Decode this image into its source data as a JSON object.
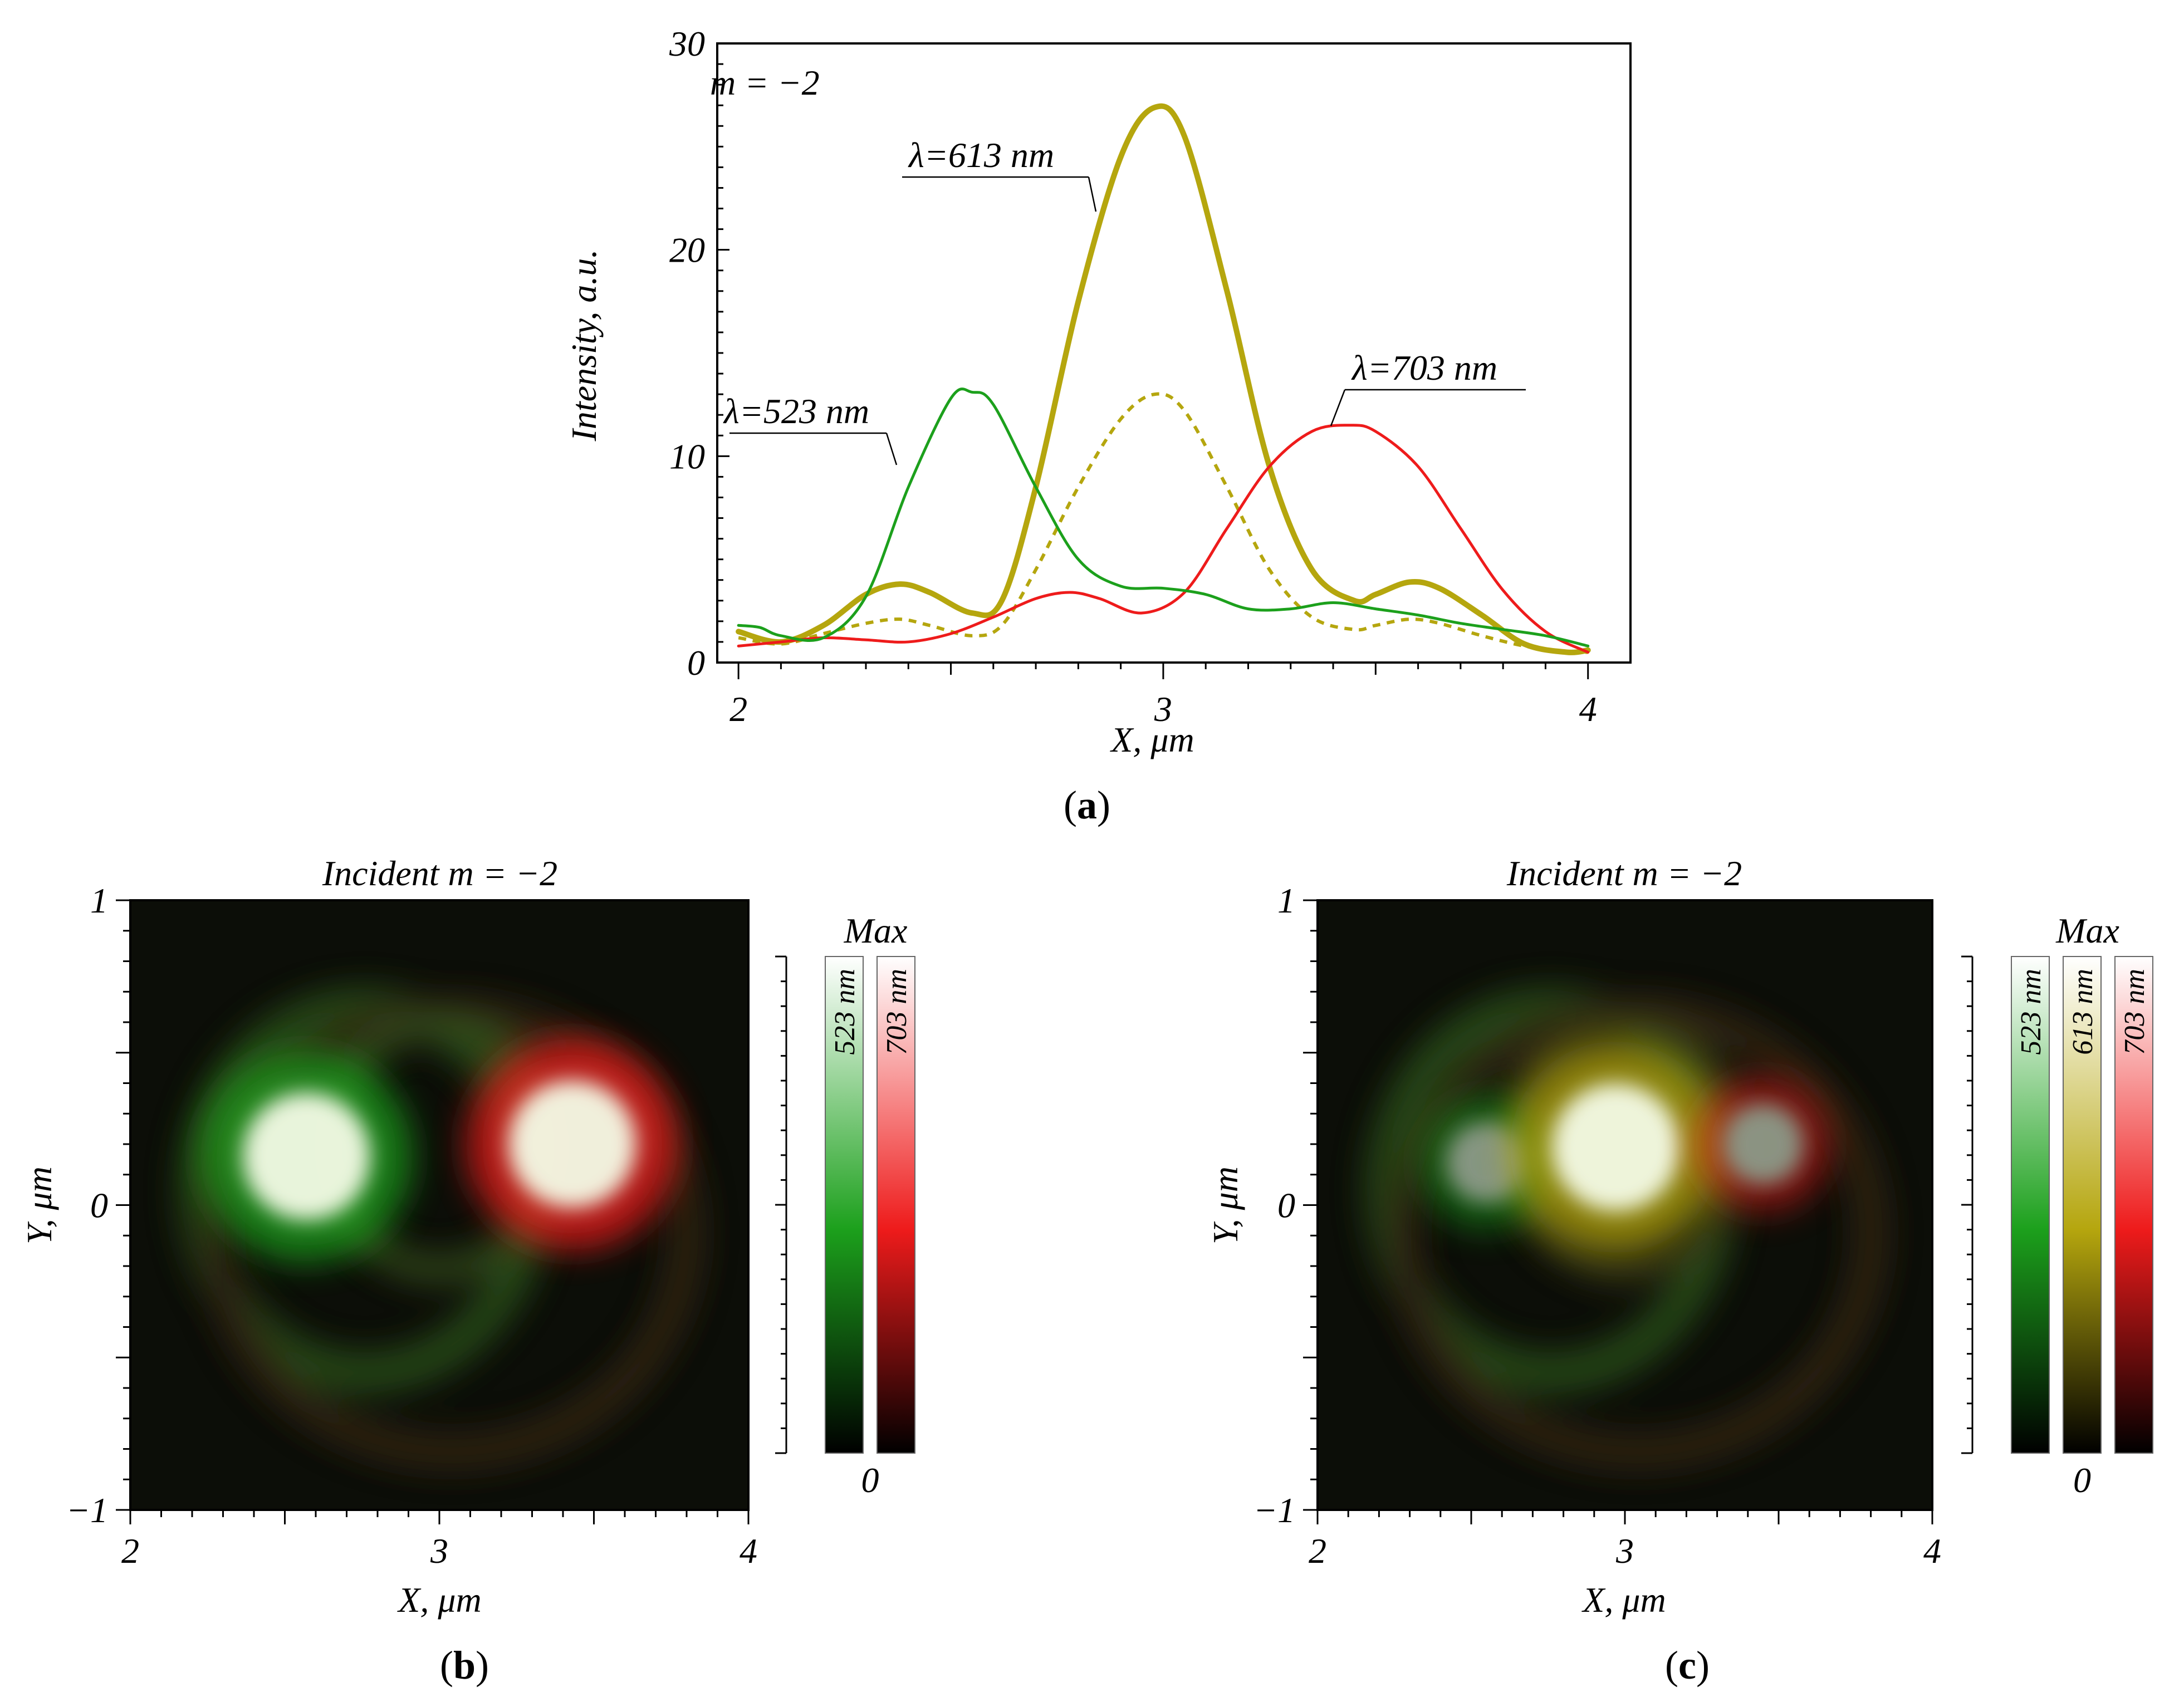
{
  "colors": {
    "green": "#1ca01c",
    "olive": "#b5a60e",
    "red": "#ee1b1b",
    "axis": "#000000"
  },
  "chart_data": [
    {
      "id": "a",
      "panel_label": "a",
      "type": "line",
      "annotation": "m = −2",
      "xlabel": "X, μm",
      "ylabel": "Intensity, a.u.",
      "xlim": [
        1.95,
        4.1
      ],
      "ylim": [
        0,
        30
      ],
      "xticks": [
        "2",
        "3",
        "4"
      ],
      "xtick_values": [
        2,
        3,
        4
      ],
      "yticks": [
        "0",
        "10",
        "20",
        "30"
      ],
      "ytick_values": [
        0,
        10,
        20,
        30
      ],
      "series": [
        {
          "name": "λ=523 nm",
          "color_key": "green",
          "style": "solid",
          "x": [
            2.0,
            2.05,
            2.1,
            2.2,
            2.3,
            2.4,
            2.5,
            2.55,
            2.6,
            2.7,
            2.8,
            2.9,
            3.0,
            3.1,
            3.2,
            3.3,
            3.4,
            3.5,
            3.6,
            3.7,
            3.8,
            3.9,
            4.0
          ],
          "y": [
            1.8,
            1.7,
            1.3,
            1.2,
            3.2,
            8.5,
            12.8,
            13.1,
            12.5,
            8.5,
            5.0,
            3.7,
            3.6,
            3.3,
            2.6,
            2.6,
            2.9,
            2.6,
            2.3,
            1.9,
            1.6,
            1.3,
            0.8
          ]
        },
        {
          "name": "λ=613 nm",
          "color_key": "olive",
          "style": "bold",
          "x": [
            2.0,
            2.1,
            2.2,
            2.3,
            2.38,
            2.45,
            2.55,
            2.62,
            2.7,
            2.8,
            2.9,
            2.98,
            3.05,
            3.15,
            3.25,
            3.35,
            3.45,
            3.5,
            3.58,
            3.65,
            3.75,
            3.85,
            3.95,
            4.0
          ],
          "y": [
            1.5,
            1.0,
            1.8,
            3.3,
            3.8,
            3.4,
            2.4,
            3.0,
            8.5,
            17.5,
            24.5,
            26.9,
            25.5,
            18.0,
            9.5,
            4.5,
            3.0,
            3.3,
            3.9,
            3.6,
            2.3,
            0.9,
            0.5,
            0.6
          ]
        },
        {
          "name": "613 nm (dashed)",
          "color_key": "olive",
          "style": "dashed",
          "x": [
            2.0,
            2.1,
            2.2,
            2.3,
            2.38,
            2.45,
            2.55,
            2.62,
            2.7,
            2.8,
            2.9,
            2.98,
            3.05,
            3.15,
            3.25,
            3.35,
            3.45,
            3.5,
            3.58,
            3.65,
            3.75,
            3.85,
            3.95,
            4.0
          ],
          "y": [
            1.2,
            0.9,
            1.4,
            1.9,
            2.1,
            1.8,
            1.3,
            1.8,
            4.5,
            8.5,
            11.8,
            13.0,
            12.2,
            8.5,
            4.5,
            2.2,
            1.6,
            1.8,
            2.1,
            1.9,
            1.3,
            0.8,
            0.5,
            0.5
          ]
        },
        {
          "name": "λ=703 nm",
          "color_key": "red",
          "style": "solid",
          "x": [
            2.0,
            2.1,
            2.2,
            2.3,
            2.4,
            2.5,
            2.6,
            2.7,
            2.78,
            2.85,
            2.95,
            3.05,
            3.15,
            3.25,
            3.35,
            3.44,
            3.5,
            3.6,
            3.7,
            3.8,
            3.9,
            4.0
          ],
          "y": [
            0.8,
            1.0,
            1.2,
            1.1,
            1.0,
            1.4,
            2.2,
            3.1,
            3.4,
            3.1,
            2.4,
            3.4,
            6.5,
            9.5,
            11.2,
            11.5,
            11.2,
            9.5,
            6.5,
            3.5,
            1.5,
            0.5
          ]
        }
      ],
      "labels": [
        {
          "text": "λ=523 nm",
          "color_key": "green",
          "at_x": 2.58,
          "at_y": 9.5
        },
        {
          "text": "λ=613 nm",
          "color_key": "olive",
          "at_x": 2.9,
          "at_y": 22.0
        },
        {
          "text": "λ=703 nm",
          "color_key": "red",
          "at_x": 3.38,
          "at_y": 11.4
        }
      ]
    },
    {
      "id": "b",
      "panel_label": "b",
      "type": "heatmap",
      "title": "Incident m = −2",
      "xlabel": "X, μm",
      "ylabel": "Y, μm",
      "xlim": [
        2,
        4
      ],
      "ylim": [
        -1,
        1
      ],
      "xticks": [
        "2",
        "3",
        "4"
      ],
      "xtick_values": [
        2,
        3,
        4
      ],
      "yticks": [
        "1",
        "0",
        "−1"
      ],
      "ytick_values": [
        1,
        0,
        -1
      ],
      "colorbar": {
        "top_label": "Max",
        "bottom_label": "0",
        "bars": [
          {
            "label": "523 nm",
            "color_key": "green"
          },
          {
            "label": "703 nm",
            "color_key": "red"
          }
        ]
      },
      "spots": [
        {
          "x": 2.57,
          "y": 0.16,
          "color_key": "green",
          "peak": 1.0
        },
        {
          "x": 3.43,
          "y": 0.2,
          "color_key": "red",
          "peak": 1.0
        }
      ]
    },
    {
      "id": "c",
      "panel_label": "c",
      "type": "heatmap",
      "title": "Incident m = −2",
      "xlabel": "X, μm",
      "ylabel": "Y, μm",
      "xlim": [
        2,
        4
      ],
      "ylim": [
        -1,
        1
      ],
      "xticks": [
        "2",
        "3",
        "4"
      ],
      "xtick_values": [
        2,
        3,
        4
      ],
      "yticks": [
        "1",
        "0",
        "−1"
      ],
      "ytick_values": [
        1,
        0,
        -1
      ],
      "colorbar": {
        "top_label": "Max",
        "bottom_label": "0",
        "bars": [
          {
            "label": "523 nm",
            "color_key": "green"
          },
          {
            "label": "613 nm",
            "color_key": "olive"
          },
          {
            "label": "703 nm",
            "color_key": "red"
          }
        ]
      },
      "spots": [
        {
          "x": 2.55,
          "y": 0.14,
          "color_key": "green",
          "peak": 0.55
        },
        {
          "x": 2.97,
          "y": 0.19,
          "color_key": "olive",
          "peak": 1.0
        },
        {
          "x": 3.45,
          "y": 0.2,
          "color_key": "red",
          "peak": 0.55
        }
      ]
    }
  ]
}
